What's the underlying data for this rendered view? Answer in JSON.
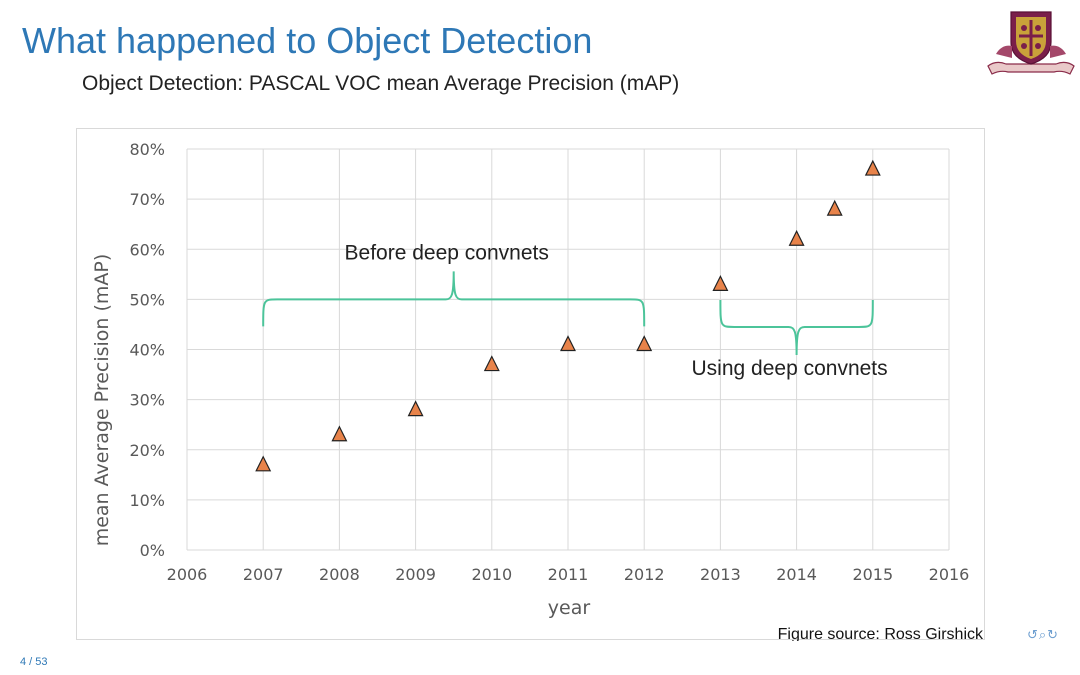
{
  "slide": {
    "title": "What happened to Object Detection",
    "subtitle": "Object Detection: PASCAL VOC mean Average Precision (mAP)",
    "page_number": "4 / 53",
    "figure_source": "Figure source: Ross Girshick",
    "logo_icon": "university-crest-icon",
    "nav_icons": "↺⌕↻"
  },
  "colors": {
    "title": "#2e78b6",
    "marker_fill": "#e8834a",
    "marker_stroke": "#222222",
    "bracket": "#4cc49a",
    "grid": "#d9d9d9",
    "axis_text": "#595959"
  },
  "chart_data": {
    "type": "scatter",
    "title": "",
    "xlabel": "year",
    "ylabel": "mean Average Precision (mAP)",
    "xlim": [
      2006,
      2016
    ],
    "ylim": [
      0,
      80
    ],
    "x_ticks": [
      "2006",
      "2007",
      "2008",
      "2009",
      "2010",
      "2011",
      "2012",
      "2013",
      "2014",
      "2015",
      "2016"
    ],
    "y_ticks": [
      "0%",
      "10%",
      "20%",
      "30%",
      "40%",
      "50%",
      "60%",
      "70%",
      "80%"
    ],
    "grid": true,
    "marker": "triangle",
    "series": [
      {
        "name": "mAP",
        "points": [
          {
            "x": 2007,
            "y": 17
          },
          {
            "x": 2008,
            "y": 23
          },
          {
            "x": 2009,
            "y": 28
          },
          {
            "x": 2010,
            "y": 37
          },
          {
            "x": 2011,
            "y": 41
          },
          {
            "x": 2012,
            "y": 41
          },
          {
            "x": 2013,
            "y": 53
          },
          {
            "x": 2014,
            "y": 62
          },
          {
            "x": 2014.5,
            "y": 68
          },
          {
            "x": 2015,
            "y": 76
          }
        ]
      }
    ],
    "annotations": [
      {
        "text": "Before deep convnets",
        "x_start": 2007,
        "x_end": 2012,
        "y": 50,
        "direction": "up"
      },
      {
        "text": "Using deep convnets",
        "x_start": 2013,
        "x_end": 2015,
        "y": 44.5,
        "direction": "down"
      }
    ]
  }
}
